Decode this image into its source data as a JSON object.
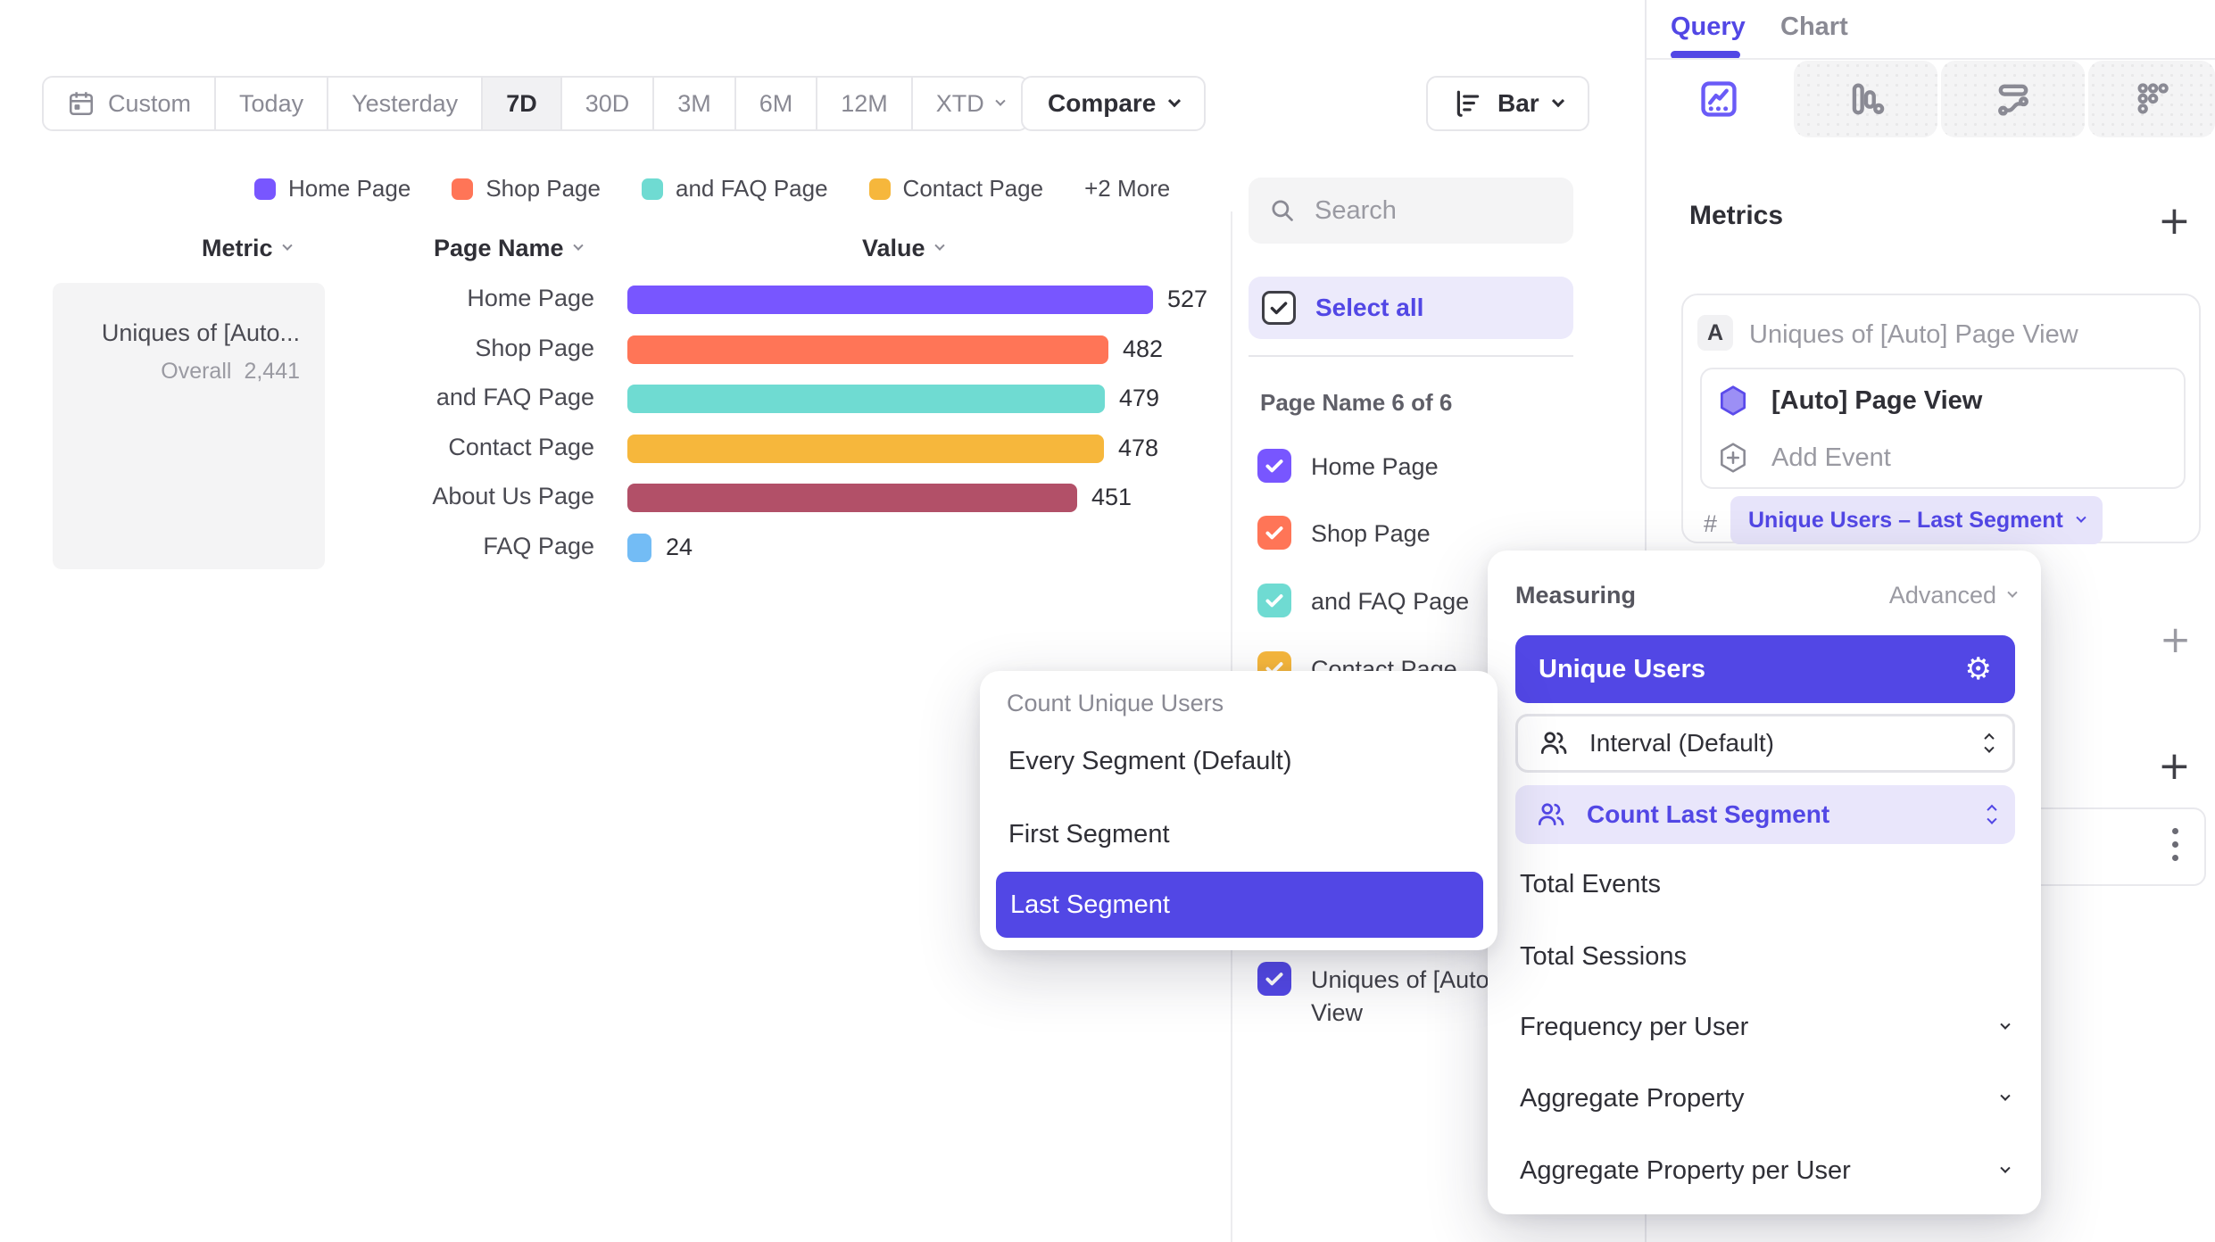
{
  "toolbar": {
    "ranges": [
      {
        "label": "Custom",
        "icon": "calendar"
      },
      {
        "label": "Today"
      },
      {
        "label": "Yesterday"
      },
      {
        "label": "7D"
      },
      {
        "label": "30D"
      },
      {
        "label": "3M"
      },
      {
        "label": "6M"
      },
      {
        "label": "12M"
      },
      {
        "label": "XTD",
        "chevron": true
      }
    ],
    "selected_range": "7D",
    "compare_label": "Compare",
    "chart_type": {
      "label": "Bar"
    }
  },
  "legend": {
    "items": [
      {
        "label": "Home Page",
        "color": "#7856FF"
      },
      {
        "label": "Shop Page",
        "color": "#FF7557"
      },
      {
        "label": "and FAQ Page",
        "color": "#6FDBD2"
      },
      {
        "label": "Contact Page",
        "color": "#F6B73C"
      }
    ],
    "more_label": "+2 More"
  },
  "table": {
    "columns": [
      "Metric",
      "Page Name",
      "Value"
    ]
  },
  "metric_card": {
    "title": "Uniques of [Auto...",
    "overall_label": "Overall",
    "overall_value": "2,441"
  },
  "chart_data": {
    "type": "bar",
    "orientation": "horizontal",
    "title": "Uniques of [Auto] Page View",
    "categories": [
      "Home Page",
      "Shop Page",
      "and FAQ Page",
      "Contact Page",
      "About Us Page",
      "FAQ Page"
    ],
    "values": [
      527,
      482,
      479,
      478,
      451,
      24
    ],
    "value_labels": [
      "527",
      "482",
      "479",
      "478",
      "451",
      "24"
    ],
    "colors": [
      "#7856FF",
      "#FF7557",
      "#6FDBD2",
      "#F6B73C",
      "#B25068",
      "#73BCF5"
    ],
    "overall": 2441,
    "xlim": [
      0,
      527
    ],
    "grid": false,
    "legend_position": "top"
  },
  "filter_panel": {
    "search_placeholder": "Search",
    "select_all_label": "Select all",
    "group_label": "Page Name 6 of 6",
    "items": [
      {
        "label": "Home Page",
        "color": "#7856FF",
        "checked": true
      },
      {
        "label": "Shop Page",
        "color": "#FF7557",
        "checked": true
      },
      {
        "label": "and FAQ Page",
        "color": "#6FDBD2",
        "checked": true
      },
      {
        "label": "Contact Page",
        "color": "#F6B73C",
        "checked": true
      },
      {
        "label": "About Us Page",
        "color": "#B25068",
        "checked": true
      },
      {
        "label": "FAQ Page",
        "color": "#73BCF5",
        "checked": true
      },
      {
        "label": "Uniques of [Auto] Page View",
        "color": "#5247E5",
        "checked": true,
        "section": "metric"
      }
    ]
  },
  "sidebar": {
    "tabs": [
      {
        "label": "Query",
        "active": true
      },
      {
        "label": "Chart",
        "active": false
      }
    ],
    "metrics_header": {
      "title": "Metrics"
    },
    "metric_card": {
      "badge": "A",
      "title": "Uniques of [Auto] Page View",
      "event_name": "[Auto] Page View",
      "add_event_label": "Add Event",
      "hash_symbol": "#",
      "aggregation_pill": "Unique Users – Last Segment"
    }
  },
  "measuring_menu": {
    "title": "Measuring",
    "advanced_label": "Advanced",
    "selected_option": "Unique Users",
    "sub_rows": [
      {
        "label": "Interval (Default)",
        "active": false
      },
      {
        "label": "Count Last Segment",
        "active": true
      }
    ],
    "options": [
      {
        "label": "Total Events"
      },
      {
        "label": "Total Sessions"
      },
      {
        "label": "Frequency per User",
        "chevron": true
      },
      {
        "label": "Aggregate Property",
        "chevron": true
      },
      {
        "label": "Aggregate Property per User",
        "chevron": true
      }
    ]
  },
  "count_menu": {
    "title": "Count Unique Users",
    "options": [
      "Every Segment (Default)",
      "First Segment",
      "Last Segment"
    ],
    "selected": "Last Segment"
  },
  "icons": {
    "plus": "+",
    "gear": "⚙"
  },
  "colors": {
    "accent": "#5247E5",
    "accent_light": "#ECEAFB",
    "chart_purple": "#7856FF",
    "text_dark": "#2F2F36",
    "text_gray": "#8A8A94",
    "border": "#E6E6EA",
    "bg_gray": "#F4F4F5"
  }
}
